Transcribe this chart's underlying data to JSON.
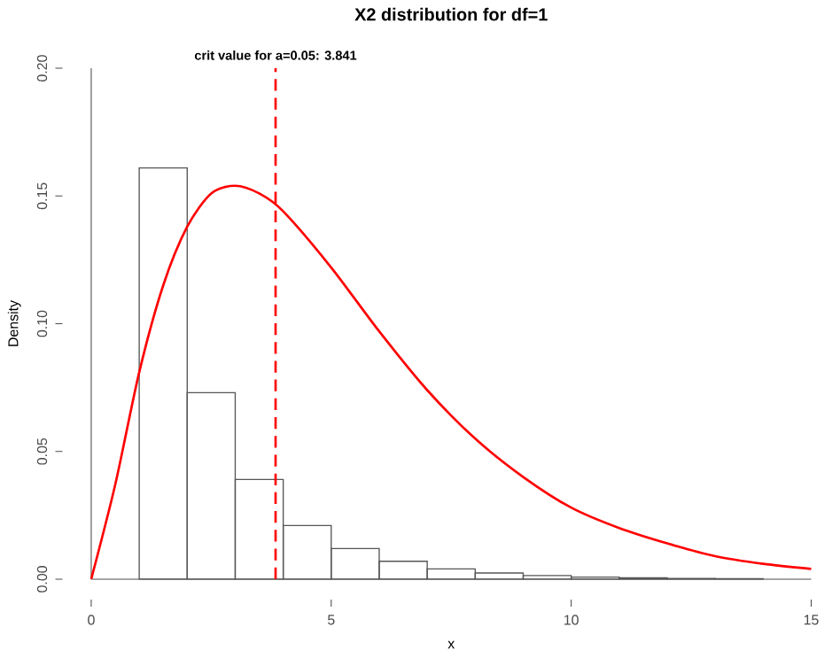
{
  "chart_data": {
    "type": "histogram",
    "title": "X2 distribution for df=1",
    "xlabel": "x",
    "ylabel": "Density",
    "xlim": [
      0,
      15
    ],
    "ylim": [
      0,
      0.2
    ],
    "xticks": [
      0,
      5,
      10,
      15
    ],
    "yticks": [
      {
        "value": 0,
        "label": "0.00"
      },
      {
        "value": 0.05,
        "label": "0.05"
      },
      {
        "value": 0.1,
        "label": "0.10"
      },
      {
        "value": 0.15,
        "label": "0.15"
      },
      {
        "value": 0.2,
        "label": "0.20"
      }
    ],
    "series": [
      {
        "color": "#555555",
        "bins": [
          0,
          1,
          2,
          3,
          4,
          5,
          6,
          7,
          8,
          9,
          10,
          11,
          12,
          13,
          14
        ],
        "values": [
          null,
          0.161,
          0.073,
          0.039,
          0.021,
          0.012,
          0.007,
          0.004,
          0.0024,
          0.0014,
          0.0008,
          0.0005,
          0.0003,
          0.0002
        ]
      },
      {
        "type": "line",
        "color": "#ff0000",
        "x": [
          0,
          0.5,
          1,
          1.5,
          2,
          2.5,
          3,
          3.5,
          4,
          5,
          6,
          7,
          8,
          9,
          10,
          11,
          12,
          13,
          14,
          15
        ],
        "values": [
          0,
          0.037,
          0.081,
          0.115,
          0.138,
          0.151,
          0.154,
          0.151,
          0.144,
          0.122,
          0.097,
          0.074,
          0.055,
          0.04,
          0.028,
          0.02,
          0.014,
          0.009,
          0.006,
          0.004
        ]
      }
    ],
    "ref_lines": [
      {
        "axis": "x",
        "value": 3.841,
        "label": "crit value for a=0.05:  3.841",
        "color": "#ff0000",
        "line_style": "dashed"
      }
    ],
    "grid": false
  }
}
